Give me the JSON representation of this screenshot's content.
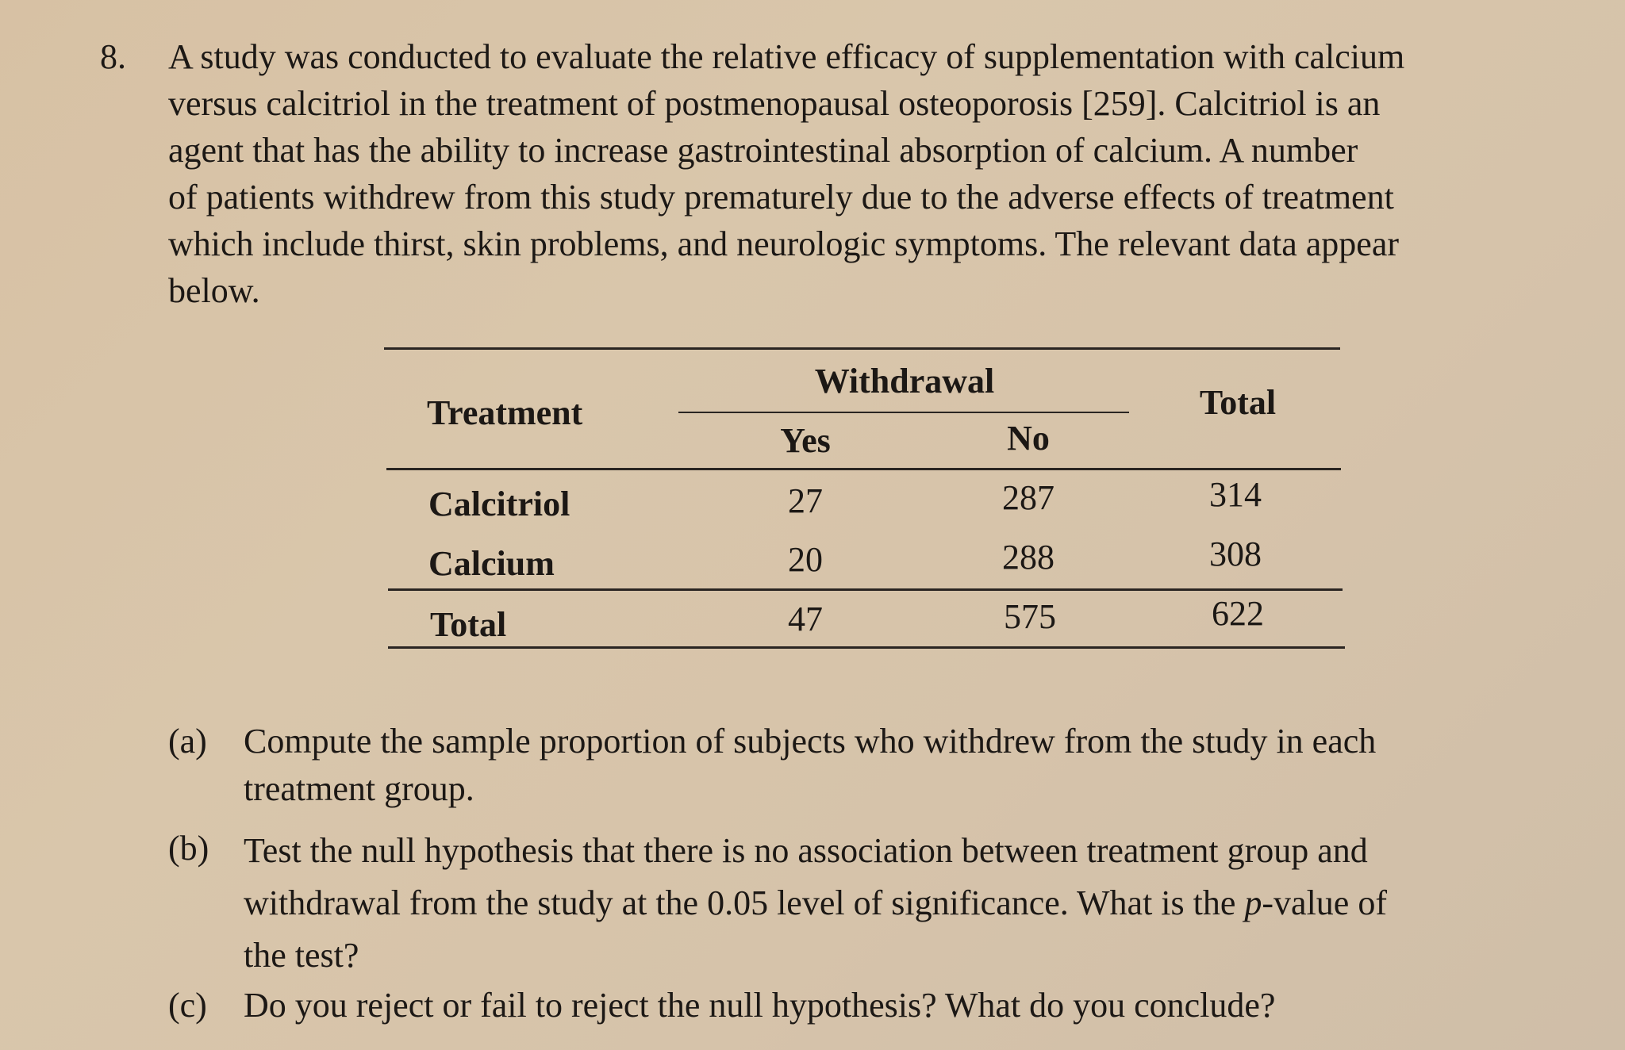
{
  "problem": {
    "number": "8.",
    "lines": [
      "A study was conducted to evaluate the relative efficacy of supplementation with calcium",
      "versus calcitriol in the treatment of postmenopausal osteoporosis [259]. Calcitriol is an",
      "agent that has the ability to increase gastrointestinal absorption of calcium. A number",
      "of patients withdrew from this study prematurely due to the adverse effects of treatment",
      "which include thirst, skin problems, and neurologic symptoms. The relevant data appear",
      "below."
    ]
  },
  "table": {
    "header": {
      "treatment": "Treatment",
      "withdrawal": "Withdrawal",
      "yes": "Yes",
      "no": "No",
      "total": "Total"
    },
    "rows": [
      {
        "treatment": "Calcitriol",
        "yes": "27",
        "no": "287",
        "total": "314"
      },
      {
        "treatment": "Calcium",
        "yes": "20",
        "no": "288",
        "total": "308"
      },
      {
        "treatment": "Total",
        "yes": "47",
        "no": "575",
        "total": "622"
      }
    ]
  },
  "questions": [
    {
      "label": "(a)",
      "lines": [
        "Compute the sample proportion of subjects who withdrew from the study in each",
        "treatment group."
      ]
    },
    {
      "label": "(b)",
      "line1": "Test the null hypothesis that there is no association between treatment group and",
      "line2_before": "withdrawal from the study at the 0.05 level of significance. What is the ",
      "line2_italic": "p",
      "line2_after": "-value of",
      "line3": "the test?"
    },
    {
      "label": "(c)",
      "lines": [
        "Do you reject or fail to reject the null hypothesis? What do you conclude?"
      ]
    }
  ]
}
